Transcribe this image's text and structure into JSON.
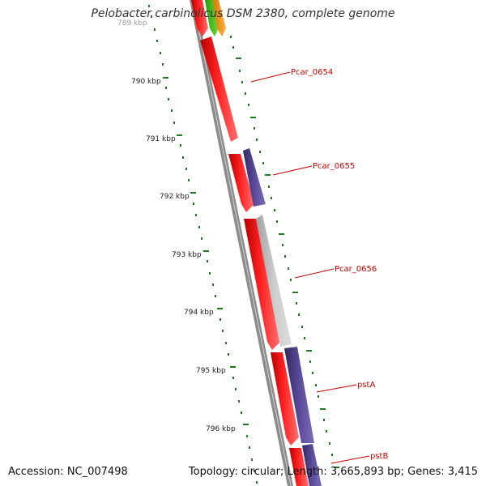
{
  "title": "Pelobacter carbinolicus DSM 2380, complete genome",
  "footer": {
    "accession": "Accession: NC_007498",
    "summary": "Topology: circular; Length: 3,665,893 bp; Genes: 3,415"
  },
  "colors": {
    "tick": "#1e7a1e",
    "backbone": "#8c8c8c",
    "red_feature": "#ff0000",
    "purple_feature": "#4b3c8c",
    "gray_feature": "#bdbdbd",
    "green_feature": "#44cc22",
    "orange_feature": "#ff9900",
    "gene_label": "#cc0000"
  },
  "scale_labels": [
    "789 kbp",
    "790 kbp",
    "791 kbp",
    "792 kbp",
    "793 kbp",
    "794 kbp",
    "795 kbp",
    "796 kbp"
  ],
  "gene_labels": [
    "Pcar_0654",
    "Pcar_0655",
    "Pcar_0656",
    "pstA",
    "pstB"
  ]
}
